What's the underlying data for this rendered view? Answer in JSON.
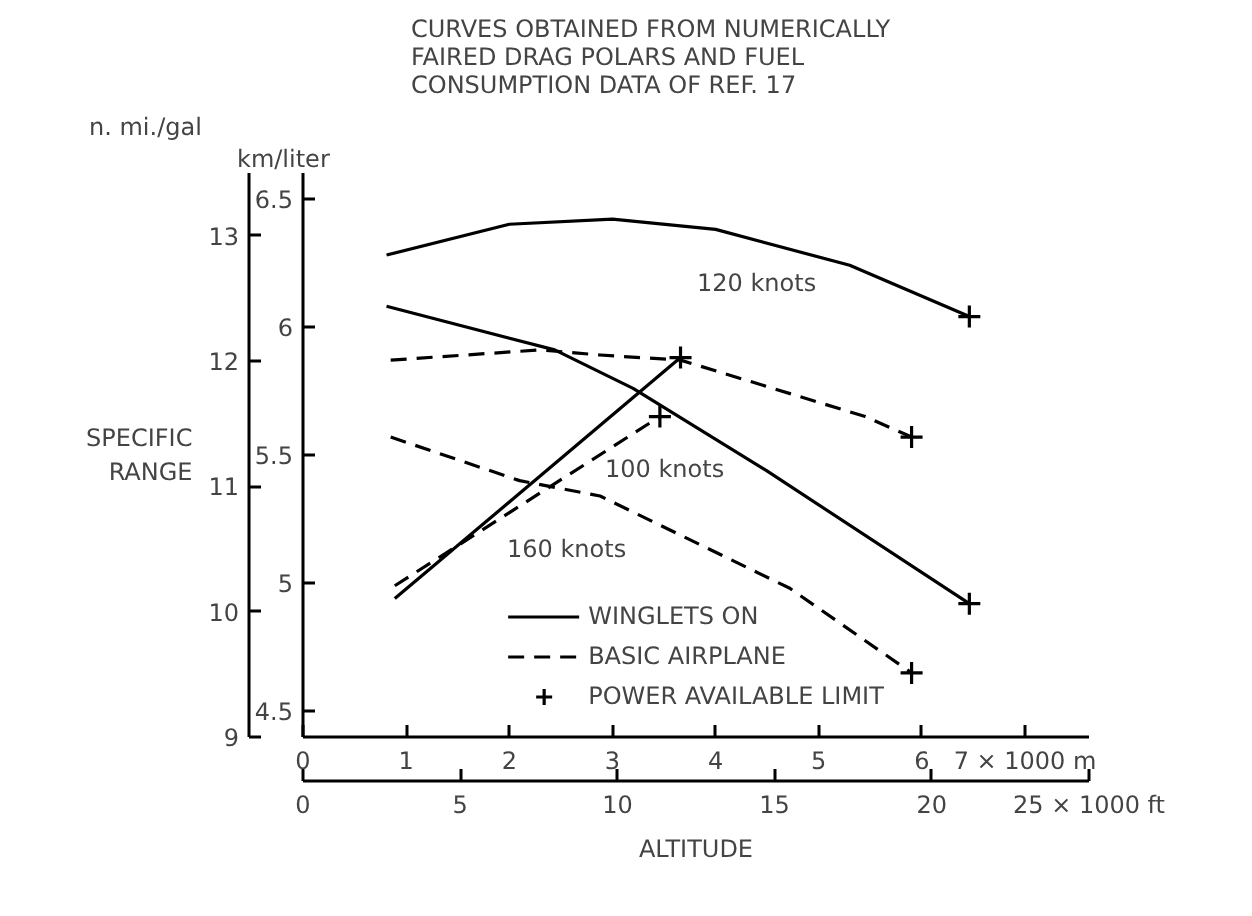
{
  "chart_data": {
    "type": "line",
    "title": "CURVES OBTAINED FROM NUMERICALLY\nFAIRED DRAG POLARS AND FUEL\nCONSUMPTION DATA OF REF. 17",
    "y2label": "SPECIFIC\nRANGE",
    "xlabel": "ALTITUDE",
    "xlim": [
      0,
      7.62
    ],
    "xticks": [
      0,
      1,
      2,
      3,
      4,
      5,
      6,
      {
        "value": 7,
        "label": "7 × 1000 m"
      }
    ],
    "x2lim": [
      0,
      25
    ],
    "x2ticks": [
      0,
      5,
      10,
      15,
      20,
      {
        "value": 25,
        "label": "25 × 1000 ft"
      }
    ],
    "ylim": [
      4.4,
      6.6
    ],
    "yticks": [
      4.5,
      5.0,
      5.5,
      6.0,
      6.5
    ],
    "y2lim": [
      9.0,
      13.5
    ],
    "y2ticks": [
      9,
      10,
      11,
      12,
      13
    ],
    "grid": false,
    "legend": "bottom",
    "series": [
      {
        "name": "WINGLETS ON",
        "line_style": "solid",
        "color": "#000000",
        "x": [
          0.81,
          2.0,
          3.0,
          4.0,
          5.3,
          6.46
        ],
        "values": [
          6.28,
          6.4,
          6.42,
          6.38,
          6.24,
          6.04
        ]
      },
      {
        "line_style": "solid",
        "color": "#000000",
        "x": [
          0.81,
          2.44,
          3.2,
          4.49,
          6.46
        ],
        "values": [
          6.08,
          5.91,
          5.76,
          5.44,
          4.92
        ]
      },
      {
        "line_style": "solid",
        "color": "#000000",
        "x": [
          0.89,
          3.66
        ],
        "values": [
          4.94,
          5.88
        ]
      },
      {
        "name": "BASIC AIRPLANE",
        "line_style": "dashed",
        "color": "#000000",
        "x": [
          0.85,
          2.3,
          2.88,
          3.66,
          5.45,
          5.9
        ],
        "values": [
          5.87,
          5.91,
          5.89,
          5.87,
          5.65,
          5.57
        ]
      },
      {
        "line_style": "dashed",
        "color": "#000000",
        "x": [
          0.85,
          2.1,
          2.88,
          4.72,
          5.9
        ],
        "values": [
          5.57,
          5.4,
          5.34,
          4.98,
          4.65
        ]
      },
      {
        "line_style": "dashed",
        "color": "#000000",
        "x": [
          0.89,
          3.46
        ],
        "values": [
          4.99,
          5.65
        ]
      },
      {
        "name": "POWER AVAILABLE LIMIT",
        "type": "scatter",
        "marker": "cross",
        "color": "#000000",
        "x": [
          6.46,
          6.46,
          5.9,
          5.9,
          3.66,
          3.46
        ],
        "values": [
          6.04,
          4.92,
          5.57,
          4.65,
          5.88,
          5.65
        ]
      }
    ],
    "annotations": [
      "km/liter",
      "n. mi./gal",
      "120 knots",
      "100 knots",
      "160 knots"
    ]
  }
}
